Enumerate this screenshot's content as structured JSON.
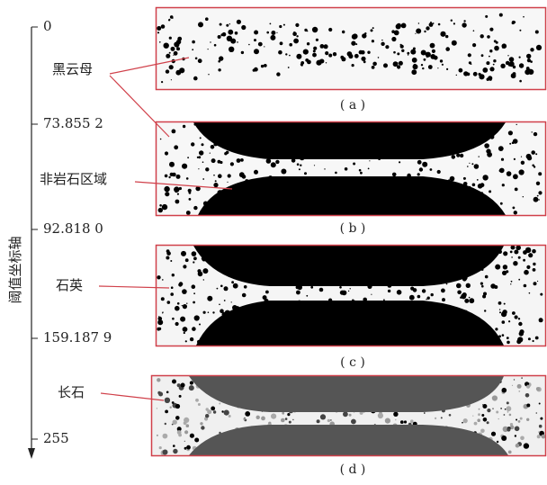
{
  "axis": {
    "title": "阈值坐标轴",
    "ticks": [
      "0",
      "73.855 2",
      "92.818 0",
      "159.187 9",
      "255"
    ]
  },
  "labels": [
    "黑云母",
    "非岩石区域",
    "石英",
    "长石"
  ],
  "panels": [
    "( a )",
    "( b )",
    "( c )",
    "( d )"
  ]
}
